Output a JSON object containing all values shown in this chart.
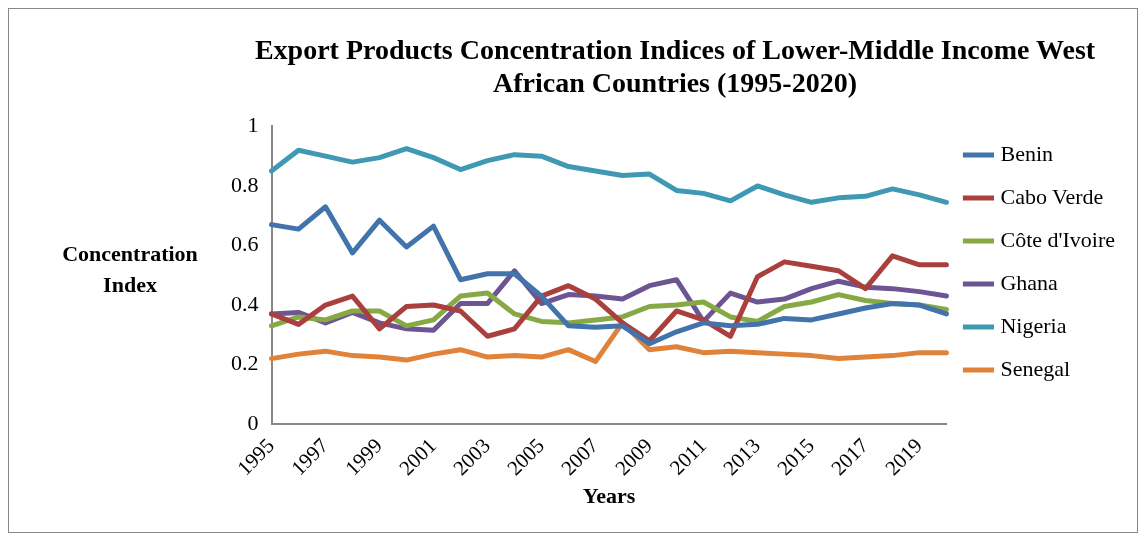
{
  "chart_data": {
    "type": "line",
    "title": "Export Products Concentration Indices of Lower-Middle Income West African Countries (1995-2020)",
    "xlabel": "Years",
    "ylabel": "Concentration Index",
    "categories": [
      "1995",
      null,
      "1997",
      null,
      "1999",
      null,
      "2001",
      null,
      "2003",
      null,
      "2005",
      null,
      "2007",
      null,
      "2009",
      null,
      "2011",
      null,
      "2013",
      null,
      "2015",
      null,
      "2017",
      null,
      "2019",
      null
    ],
    "ylim": [
      0,
      1
    ],
    "yticks": [
      0,
      0.2,
      0.4,
      0.6,
      0.8,
      1
    ],
    "grid": false,
    "legend": "right",
    "marker": "none",
    "line_style": "solid",
    "series": [
      {
        "name": "Benin",
        "color": "#4273ab",
        "values": [
          0.67,
          0.655,
          0.73,
          0.575,
          0.685,
          0.595,
          0.665,
          0.485,
          0.505,
          0.505,
          0.43,
          0.33,
          0.325,
          0.33,
          0.27,
          0.31,
          0.34,
          0.33,
          0.335,
          0.355,
          0.35,
          0.37,
          0.39,
          0.405,
          0.4,
          0.37
        ]
      },
      {
        "name": "Cabo Verde",
        "color": "#aa403d",
        "values": [
          0.37,
          0.335,
          0.4,
          0.43,
          0.32,
          0.395,
          0.4,
          0.38,
          0.295,
          0.32,
          0.43,
          0.465,
          0.42,
          0.34,
          0.28,
          0.38,
          0.35,
          0.295,
          0.495,
          0.545,
          0.53,
          0.515,
          0.455,
          0.565,
          0.535,
          0.535
        ]
      },
      {
        "name": "Côte d'Ivoire",
        "color": "#86a944",
        "values": [
          0.33,
          0.36,
          0.35,
          0.38,
          0.38,
          0.33,
          0.35,
          0.43,
          0.44,
          0.37,
          0.345,
          0.34,
          0.35,
          0.36,
          0.395,
          0.4,
          0.41,
          0.36,
          0.345,
          0.395,
          0.41,
          0.435,
          0.415,
          0.405,
          0.4,
          0.385
        ]
      },
      {
        "name": "Ghana",
        "color": "#6c5592",
        "values": [
          0.37,
          0.375,
          0.34,
          0.375,
          0.34,
          0.32,
          0.315,
          0.405,
          0.405,
          0.515,
          0.405,
          0.435,
          0.43,
          0.42,
          0.465,
          0.485,
          0.345,
          0.44,
          0.41,
          0.42,
          0.455,
          0.48,
          0.46,
          0.455,
          0.445,
          0.43
        ]
      },
      {
        "name": "Nigeria",
        "color": "#3f99b2",
        "values": [
          0.85,
          0.92,
          0.9,
          0.88,
          0.895,
          0.925,
          0.895,
          0.855,
          0.885,
          0.905,
          0.9,
          0.865,
          0.85,
          0.835,
          0.84,
          0.785,
          0.775,
          0.75,
          0.8,
          0.77,
          0.745,
          0.76,
          0.765,
          0.79,
          0.77,
          0.745
        ]
      },
      {
        "name": "Senegal",
        "color": "#e0823a",
        "values": [
          0.22,
          0.235,
          0.245,
          0.23,
          0.225,
          0.215,
          0.235,
          0.25,
          0.225,
          0.23,
          0.225,
          0.25,
          0.21,
          0.34,
          0.25,
          0.26,
          0.24,
          0.245,
          0.24,
          0.235,
          0.23,
          0.22,
          0.225,
          0.23,
          0.24,
          0.24
        ]
      }
    ]
  }
}
